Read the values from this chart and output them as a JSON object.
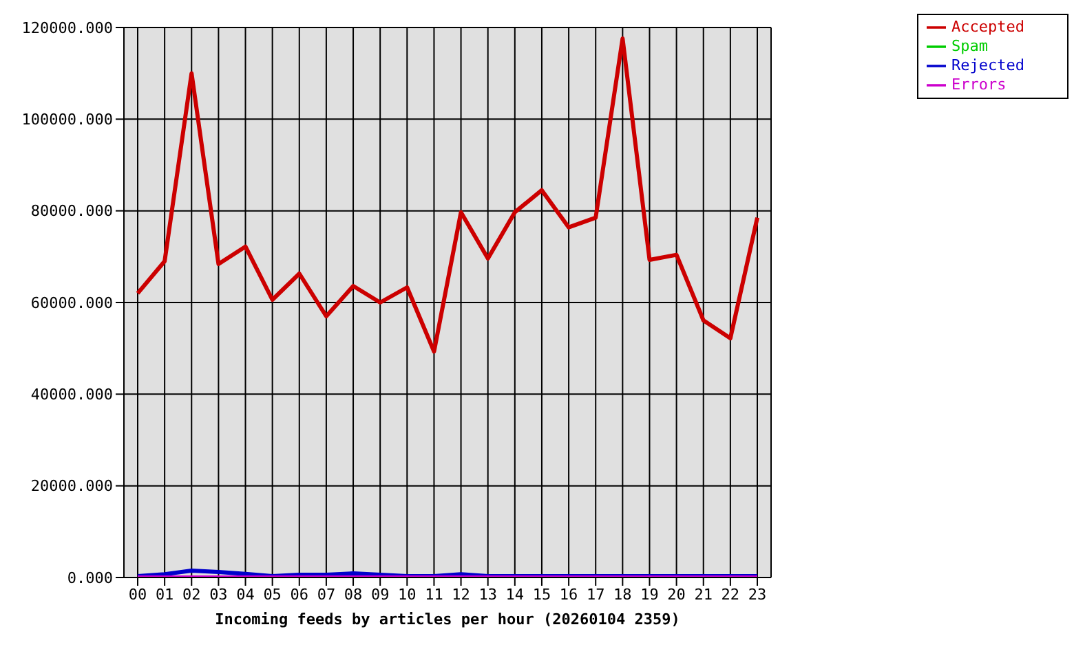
{
  "chart_data": {
    "type": "line",
    "xlabel": "Incoming feeds by articles per hour (20260104 2359)",
    "categories": [
      "00",
      "01",
      "02",
      "03",
      "04",
      "05",
      "06",
      "07",
      "08",
      "09",
      "10",
      "11",
      "12",
      "13",
      "14",
      "15",
      "16",
      "17",
      "18",
      "19",
      "20",
      "21",
      "22",
      "23"
    ],
    "series": [
      {
        "name": "Accepted",
        "color": "#cc0000",
        "values": [
          62000,
          69000,
          110000,
          68400,
          72200,
          60600,
          66300,
          57000,
          63600,
          60000,
          63300,
          49300,
          79700,
          69600,
          79700,
          84500,
          76400,
          78500,
          117600,
          69300,
          70400,
          56100,
          52200,
          78500
        ]
      },
      {
        "name": "Spam",
        "color": "#00cc00",
        "values": [
          null,
          null,
          null,
          null,
          null,
          null,
          null,
          null,
          null,
          null,
          null,
          null,
          null,
          null,
          null,
          null,
          null,
          null,
          null,
          null,
          null,
          null,
          null,
          null
        ]
      },
      {
        "name": "Rejected",
        "color": "#0000cc",
        "values": [
          300,
          700,
          1500,
          1200,
          800,
          300,
          600,
          600,
          900,
          600,
          300,
          300,
          700,
          300,
          300,
          300,
          300,
          300,
          300,
          300,
          300,
          300,
          300,
          300
        ]
      },
      {
        "name": "Errors",
        "color": "#cc00cc",
        "values": [
          0,
          0,
          0,
          0,
          0,
          0,
          0,
          0,
          0,
          0,
          0,
          0,
          0,
          0,
          0,
          0,
          0,
          0,
          0,
          0,
          0,
          0,
          0,
          0
        ]
      }
    ],
    "ylim": [
      0,
      120000
    ],
    "yticks": [
      {
        "value": 0,
        "label": "0.000"
      },
      {
        "value": 20000,
        "label": "20000.000"
      },
      {
        "value": 40000,
        "label": "40000.000"
      },
      {
        "value": 60000,
        "label": "60000.000"
      },
      {
        "value": 80000,
        "label": "80000.000"
      },
      {
        "value": 100000,
        "label": "100000.000"
      },
      {
        "value": 120000,
        "label": "120000.000"
      }
    ],
    "grid": true,
    "legend": "top right",
    "marker": "none",
    "line_style": "solid"
  }
}
